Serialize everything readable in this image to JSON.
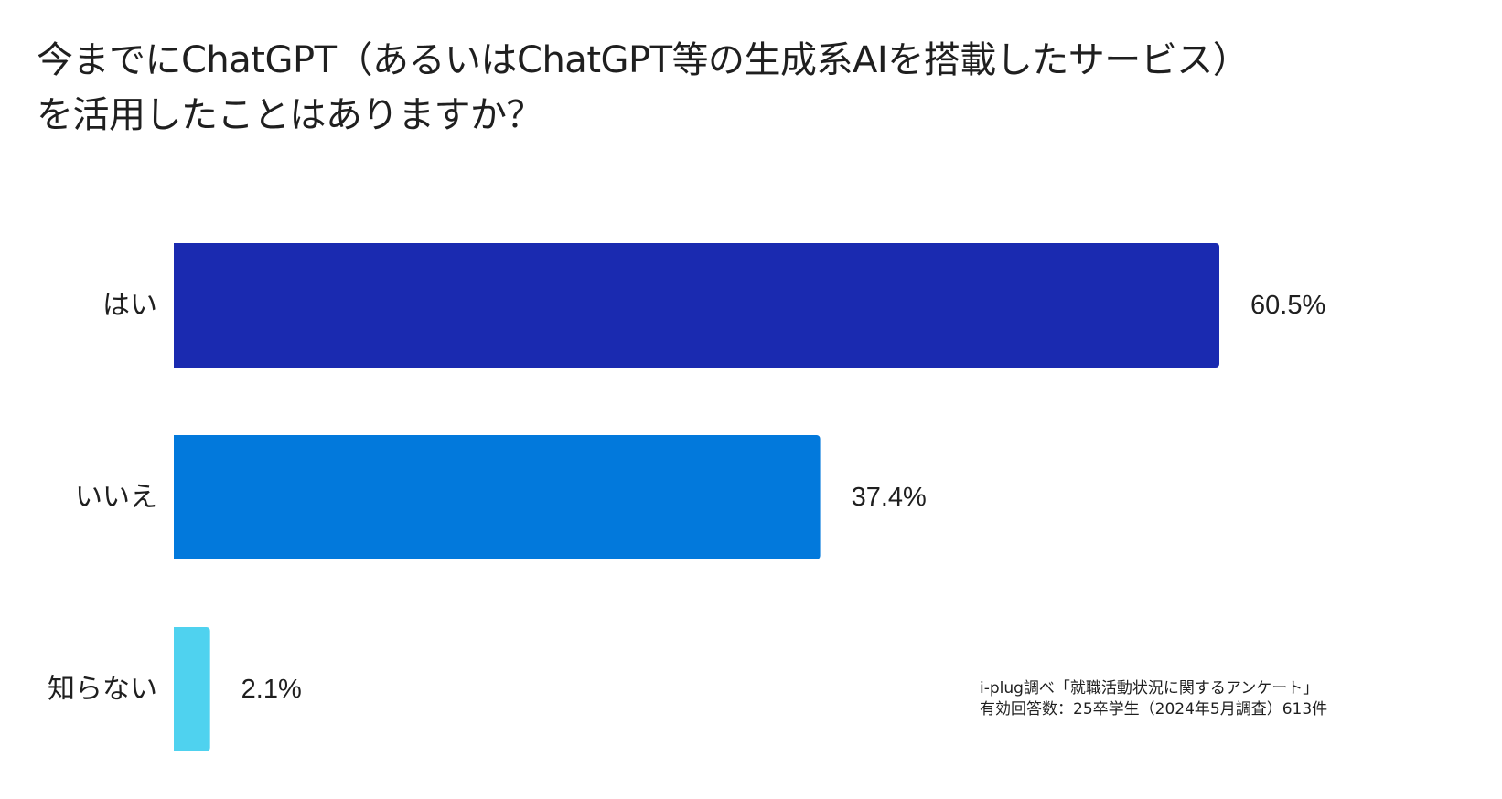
{
  "title_lines": [
    "今までにChatGPT（あるいはChatGPT等の生成系AIを搭載したサービス）",
    "を活用したことはありますか？"
  ],
  "source_lines": [
    "i-plug調べ「就職活動状況に関するアンケート」",
    "有効回答数：25卒学生（2024年5月調査）613件"
  ],
  "chart_data": {
    "type": "bar",
    "orientation": "horizontal",
    "title": "今までにChatGPT（あるいはChatGPT等の生成系AIを搭載したサービス）を活用したことはありますか？",
    "categories": [
      "はい",
      "いいえ",
      "知らない"
    ],
    "values": [
      60.5,
      37.4,
      2.1
    ],
    "value_labels": [
      "60.5%",
      "37.4%",
      "2.1%"
    ],
    "unit": "%",
    "colors": [
      "#1a2ab0",
      "#0279dc",
      "#4fd2ef"
    ],
    "xlim": [
      0,
      60.5
    ],
    "grid": false,
    "legend": "none"
  }
}
